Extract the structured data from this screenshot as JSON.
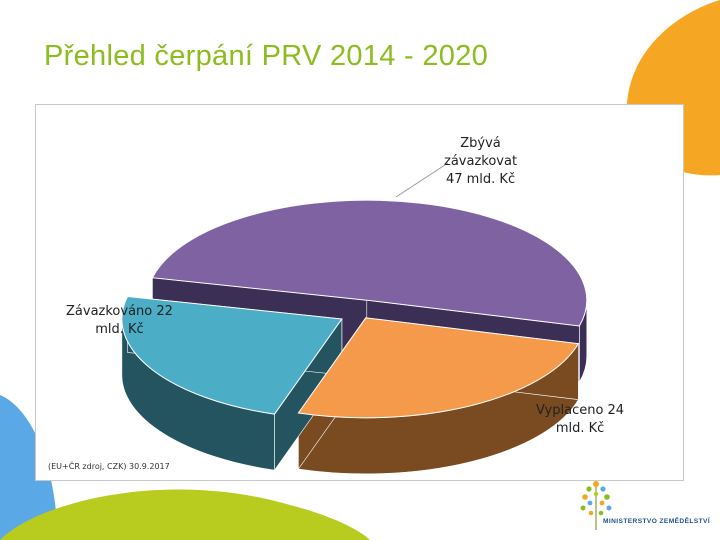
{
  "slide": {
    "title": "Přehled čerpání PRV 2014 - 2020",
    "source_note": "(EU+ČR zdroj, CZK) 30.9.2017",
    "logo_text": "MINISTERSTVO ZEMĚDĚLSTVÍ",
    "logo_icon": "wheat-sprig-icon"
  },
  "colors": {
    "title": "#8cbc1e",
    "deco_orange": "#f5a623",
    "deco_blue": "#5aa9e6",
    "deco_green": "#b8cc1f"
  },
  "chart_data": {
    "type": "pie",
    "style": "3d-exploded",
    "title": "",
    "unit": "mld. Kč",
    "slices": [
      {
        "label_lines": [
          "Zbývá",
          "závazkovat",
          "47 mld. Kč"
        ],
        "value": 47,
        "color": "#7e62a1",
        "side_color": "#3b2f56"
      },
      {
        "label_lines": [
          "Vyplaceno 24",
          "mld. Kč"
        ],
        "value": 24,
        "color": "#f59a4b",
        "side_color": "#7a4a21"
      },
      {
        "label_lines": [
          "Závazkováno 22",
          "mld. Kč"
        ],
        "value": 22,
        "color": "#4badc6",
        "side_color": "#23545f"
      }
    ]
  }
}
